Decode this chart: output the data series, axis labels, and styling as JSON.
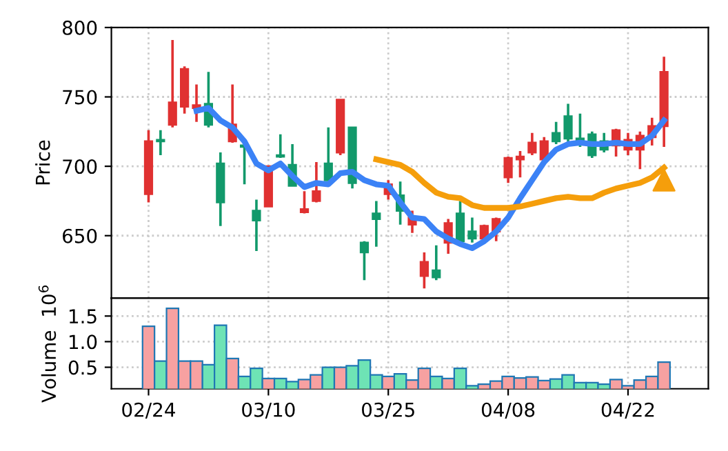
{
  "chart_data": [
    {
      "type": "candlestick",
      "ylabel": "Price",
      "ylim": [
        605,
        800
      ],
      "yticks": [
        650,
        700,
        750,
        800
      ],
      "grid": true,
      "tick_labels": "y",
      "categories": [
        null,
        null,
        null,
        null,
        null,
        null,
        null,
        null,
        null,
        null,
        null,
        null,
        null,
        null,
        null,
        null,
        null,
        null,
        null,
        null,
        null,
        null,
        null,
        null,
        null,
        null,
        null,
        null,
        null,
        null,
        null,
        null,
        null,
        null,
        null,
        null,
        null,
        null,
        null,
        null,
        null,
        null,
        null,
        null
      ],
      "ohlc": [
        [
          680,
          726,
          674,
          718
        ],
        [
          719,
          726,
          708,
          718
        ],
        [
          730,
          791,
          728,
          746
        ],
        [
          743,
          772,
          738,
          770
        ],
        [
          742,
          759,
          732,
          744
        ],
        [
          745,
          768,
          728,
          730
        ],
        [
          702,
          710,
          657,
          674
        ],
        [
          718,
          759,
          717,
          730
        ],
        [
          715,
          716,
          687,
          714
        ],
        [
          668,
          676,
          639,
          661
        ],
        [
          671,
          700,
          671,
          700
        ],
        [
          708,
          723,
          706,
          707
        ],
        [
          701,
          716,
          686,
          686
        ],
        [
          667,
          682,
          666,
          669
        ],
        [
          675,
          703,
          674,
          682
        ],
        [
          702,
          728,
          690,
          690
        ],
        [
          710,
          748,
          708,
          748
        ],
        [
          728,
          728,
          684,
          688
        ],
        [
          645,
          646,
          618,
          638
        ],
        [
          666,
          675,
          642,
          662
        ],
        [
          680,
          690,
          676,
          687
        ],
        [
          679,
          689,
          658,
          668
        ],
        [
          658,
          668,
          652,
          663
        ],
        [
          621,
          638,
          612,
          631
        ],
        [
          625,
          643,
          618,
          620
        ],
        [
          645,
          662,
          637,
          659
        ],
        [
          666,
          675,
          645,
          646
        ],
        [
          653,
          663,
          645,
          648
        ],
        [
          648,
          658,
          646,
          657
        ],
        [
          653,
          663,
          646,
          662
        ],
        [
          692,
          707,
          688,
          706
        ],
        [
          705,
          711,
          692,
          707
        ],
        [
          710,
          724,
          708,
          717
        ],
        [
          705,
          721,
          704,
          718
        ],
        [
          724,
          732,
          716,
          718
        ],
        [
          736,
          745,
          718,
          720
        ],
        [
          720,
          738,
          714,
          717
        ],
        [
          723,
          725,
          706,
          708
        ],
        [
          718,
          724,
          710,
          712
        ],
        [
          715,
          727,
          707,
          726
        ],
        [
          712,
          724,
          708,
          719
        ],
        [
          712,
          725,
          698,
          722
        ],
        [
          721,
          735,
          715,
          729
        ],
        [
          729,
          779,
          714,
          768
        ]
      ],
      "colors": [
        "#e03131",
        "#12996b",
        "#e03131",
        "#e03131",
        "#e03131",
        "#12996b",
        "#12996b",
        "#e03131",
        "#12996b",
        "#12996b",
        "#e03131",
        "#12996b",
        "#12996b",
        "#e03131",
        "#e03131",
        "#12996b",
        "#e03131",
        "#12996b",
        "#12996b",
        "#12996b",
        "#e03131",
        "#12996b",
        "#e03131",
        "#e03131",
        "#12996b",
        "#e03131",
        "#12996b",
        "#12996b",
        "#e03131",
        "#e03131",
        "#e03131",
        "#e03131",
        "#e03131",
        "#e03131",
        "#12996b",
        "#12996b",
        "#12996b",
        "#12996b",
        "#12996b",
        "#e03131",
        "#e03131",
        "#e03131",
        "#e03131",
        "#e03131"
      ],
      "series": [
        {
          "type": "line",
          "color": "#3b82f6",
          "values": [
            null,
            null,
            null,
            null,
            740,
            742,
            733,
            728,
            718,
            702,
            697,
            702,
            693,
            685,
            688,
            687,
            695,
            696,
            690,
            687,
            686,
            674,
            663,
            662,
            653,
            648,
            644,
            641,
            646,
            653,
            663,
            677,
            690,
            703,
            712,
            716,
            717,
            716,
            716,
            717,
            716,
            716,
            722,
            733
          ]
        },
        {
          "type": "line",
          "color": "#f59e0b",
          "values": [
            null,
            null,
            null,
            null,
            null,
            null,
            null,
            null,
            null,
            null,
            null,
            null,
            null,
            null,
            null,
            null,
            null,
            null,
            null,
            705,
            703,
            701,
            696,
            688,
            681,
            678,
            677,
            672,
            670,
            670,
            670,
            671,
            673,
            675,
            677,
            678,
            677,
            677,
            681,
            684,
            686,
            688,
            692,
            699
          ]
        },
        {
          "type": "scatter",
          "color": "#f59e0b",
          "marker": "triangle",
          "values": [
            null,
            null,
            null,
            null,
            null,
            null,
            null,
            null,
            null,
            null,
            null,
            null,
            null,
            null,
            null,
            null,
            null,
            null,
            null,
            null,
            null,
            null,
            null,
            null,
            null,
            null,
            null,
            null,
            null,
            null,
            null,
            null,
            null,
            null,
            null,
            null,
            null,
            null,
            null,
            null,
            null,
            null,
            null,
            690
          ]
        }
      ]
    },
    {
      "type": "bar",
      "ylabel": "Volume  10$^{6}$",
      "ylim": [
        0.08,
        1.85
      ],
      "yticks": [
        0.5,
        {
          "value": 1.0,
          "label": "1.0"
        },
        1.5
      ],
      "grid": true,
      "categories": [
        "02/24",
        null,
        null,
        null,
        null,
        null,
        null,
        null,
        null,
        null,
        "03/10",
        null,
        null,
        null,
        null,
        null,
        null,
        null,
        null,
        null,
        "03/25",
        null,
        null,
        null,
        null,
        null,
        null,
        null,
        null,
        null,
        "04/08",
        null,
        null,
        null,
        null,
        null,
        null,
        null,
        null,
        null,
        "04/22",
        null,
        null,
        null
      ],
      "values": [
        1.3,
        0.62,
        1.65,
        0.62,
        0.62,
        0.55,
        1.32,
        0.67,
        0.32,
        0.48,
        0.28,
        0.28,
        0.22,
        0.26,
        0.35,
        0.5,
        0.5,
        0.53,
        0.64,
        0.35,
        0.32,
        0.37,
        0.25,
        0.48,
        0.32,
        0.28,
        0.48,
        0.14,
        0.17,
        0.23,
        0.32,
        0.29,
        0.31,
        0.24,
        0.27,
        0.35,
        0.2,
        0.2,
        0.17,
        0.26,
        0.14,
        0.25,
        0.32,
        0.6
      ],
      "colors": [
        "#f7a1a1",
        "#6ee3b5",
        "#f7a1a1",
        "#f7a1a1",
        "#f7a1a1",
        "#6ee3b5",
        "#6ee3b5",
        "#f7a1a1",
        "#6ee3b5",
        "#6ee3b5",
        "#f7a1a1",
        "#6ee3b5",
        "#6ee3b5",
        "#f7a1a1",
        "#f7a1a1",
        "#6ee3b5",
        "#f7a1a1",
        "#6ee3b5",
        "#6ee3b5",
        "#6ee3b5",
        "#f7a1a1",
        "#6ee3b5",
        "#f7a1a1",
        "#f7a1a1",
        "#6ee3b5",
        "#f7a1a1",
        "#6ee3b5",
        "#6ee3b5",
        "#f7a1a1",
        "#f7a1a1",
        "#f7a1a1",
        "#f7a1a1",
        "#f7a1a1",
        "#f7a1a1",
        "#6ee3b5",
        "#6ee3b5",
        "#6ee3b5",
        "#6ee3b5",
        "#6ee3b5",
        "#f7a1a1",
        "#f7a1a1",
        "#f7a1a1",
        "#f7a1a1",
        "#f7a1a1"
      ]
    }
  ]
}
